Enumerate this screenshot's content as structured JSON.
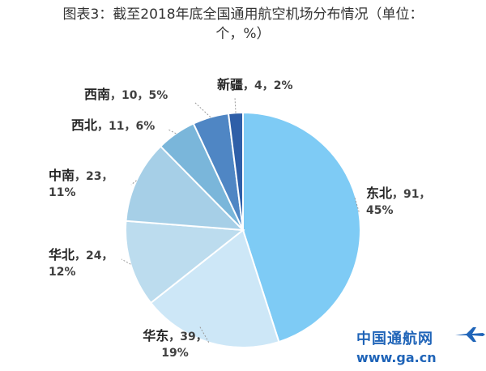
{
  "title": {
    "line1": "图表3：截至2018年底全国通用航空机场分布情况（单位：",
    "line2": "个，%）"
  },
  "chart_data": {
    "type": "pie",
    "title": "图表3：截至2018年底全国通用航空机场分布情况（单位：个，%）",
    "slices": [
      {
        "name": "东北",
        "value": 91,
        "percent": "45%",
        "color": "#7ecbf5"
      },
      {
        "name": "华东",
        "value": 39,
        "percent": "19%",
        "color": "#cde7f7"
      },
      {
        "name": "华北",
        "value": 24,
        "percent": "12%",
        "color": "#bcdcee"
      },
      {
        "name": "中南",
        "value": 23,
        "percent": "11%",
        "color": "#a6cfe7"
      },
      {
        "name": "西北",
        "value": 11,
        "percent": "6%",
        "color": "#7ab6da"
      },
      {
        "name": "西南",
        "value": 10,
        "percent": "5%",
        "color": "#4f86c4"
      },
      {
        "name": "新疆",
        "value": 4,
        "percent": "2%",
        "color": "#2f5fa8"
      }
    ],
    "start_direction": "12 o'clock",
    "order": "clockwise"
  },
  "brand": {
    "name": "中国通航网",
    "url": "www.ga.cn"
  }
}
